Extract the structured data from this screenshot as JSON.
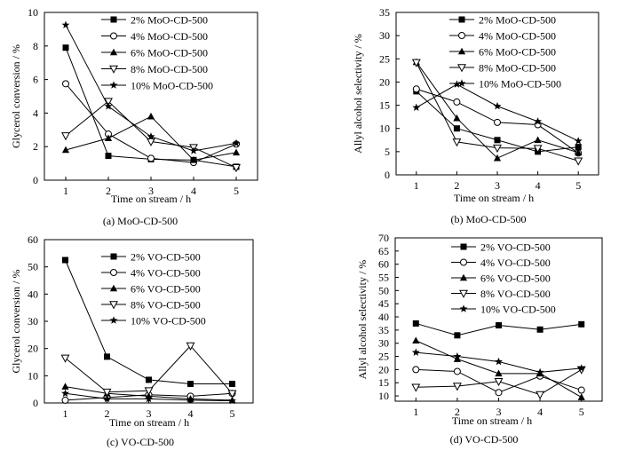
{
  "figure": {
    "panels": [
      {
        "type": "line",
        "caption": "(a) MoO-CD-500",
        "xlabel": "Time on stream / h",
        "ylabel": "Glycerol conversion / %",
        "x": [
          1,
          2,
          3,
          4,
          5
        ],
        "xlim": [
          0.5,
          5.5
        ],
        "ylim": [
          0,
          10
        ],
        "yticks": [
          0,
          2,
          4,
          6,
          8,
          10
        ],
        "xticks": [
          1,
          2,
          3,
          4,
          5
        ],
        "legend_position": "top-right",
        "series": [
          {
            "name": "2% MoO-CD-500",
            "marker": "square",
            "values": [
              7.9,
              1.45,
              1.25,
              1.2,
              0.8
            ]
          },
          {
            "name": "4% MoO-CD-500",
            "marker": "circle-open",
            "values": [
              5.75,
              2.75,
              1.3,
              1.05,
              2.15
            ]
          },
          {
            "name": "6% MoO-CD-500",
            "marker": "triangle-up",
            "values": [
              1.8,
              2.5,
              3.8,
              1.2,
              1.65
            ]
          },
          {
            "name": "8% MoO-CD-500",
            "marker": "triangle-down-open",
            "values": [
              2.65,
              4.7,
              2.3,
              1.95,
              0.75
            ]
          },
          {
            "name": "10% MoO-CD-500",
            "marker": "star",
            "values": [
              9.25,
              4.4,
              2.6,
              1.75,
              2.2
            ]
          }
        ]
      },
      {
        "type": "line",
        "caption": "(b) MoO-CD-500",
        "xlabel": "Time on stream / h",
        "ylabel": "Allyl alcohol selectivity / %",
        "x": [
          1,
          2,
          3,
          4,
          5
        ],
        "xlim": [
          0.5,
          5.5
        ],
        "ylim": [
          0,
          35
        ],
        "yticks": [
          0,
          5,
          10,
          15,
          20,
          25,
          30,
          35
        ],
        "xticks": [
          1,
          2,
          3,
          4,
          5
        ],
        "legend_position": "top-right",
        "series": [
          {
            "name": "2% MoO-CD-500",
            "marker": "square",
            "values": [
              18.0,
              10.0,
              7.5,
              5.0,
              6.0
            ]
          },
          {
            "name": "4% MoO-CD-500",
            "marker": "circle-open",
            "values": [
              18.5,
              15.7,
              11.3,
              10.8,
              4.7
            ]
          },
          {
            "name": "6% MoO-CD-500",
            "marker": "triangle-up",
            "values": [
              24.3,
              12.2,
              3.6,
              7.5,
              4.8
            ]
          },
          {
            "name": "8% MoO-CD-500",
            "marker": "triangle-down-open",
            "values": [
              24.2,
              7.1,
              5.8,
              5.7,
              3.0
            ]
          },
          {
            "name": "10% MoO-CD-500",
            "marker": "star",
            "values": [
              14.5,
              19.5,
              14.8,
              11.5,
              7.3
            ]
          }
        ]
      },
      {
        "type": "line",
        "caption": "(c) VO-CD-500",
        "xlabel": "Time on stream / h",
        "ylabel": "Glycerol conversion / %",
        "x": [
          1,
          2,
          3,
          4,
          5
        ],
        "xlim": [
          0.5,
          5.5
        ],
        "ylim": [
          0,
          60
        ],
        "yticks": [
          0,
          10,
          20,
          30,
          40,
          50,
          60
        ],
        "xticks": [
          1,
          2,
          3,
          4,
          5
        ],
        "legend_position": "top-right",
        "series": [
          {
            "name": "2% VO-CD-500",
            "marker": "square",
            "values": [
              52.5,
              17.0,
              8.5,
              7.0,
              7.0
            ]
          },
          {
            "name": "4% VO-CD-500",
            "marker": "circle-open",
            "values": [
              1.0,
              2.0,
              3.0,
              2.5,
              3.5
            ]
          },
          {
            "name": "6% VO-CD-500",
            "marker": "triangle-up",
            "values": [
              6.0,
              3.5,
              2.5,
              1.5,
              1.0
            ]
          },
          {
            "name": "8% VO-CD-500",
            "marker": "triangle-down-open",
            "values": [
              16.5,
              4.0,
              4.5,
              21.0,
              3.5
            ]
          },
          {
            "name": "10% VO-CD-500",
            "marker": "star",
            "values": [
              3.5,
              1.5,
              1.5,
              1.0,
              0.8
            ]
          }
        ]
      },
      {
        "type": "line",
        "caption": "(d) VO-CD-500",
        "xlabel": "Time on stream / h",
        "ylabel": "Allyl alcohol selectivity / %",
        "x": [
          1,
          2,
          3,
          4,
          5
        ],
        "xlim": [
          0.5,
          5.5
        ],
        "ylim": [
          8,
          70
        ],
        "yticks": [
          10,
          15,
          20,
          25,
          30,
          35,
          40,
          45,
          50,
          55,
          60,
          65,
          70
        ],
        "xticks": [
          1,
          2,
          3,
          4,
          5
        ],
        "legend_position": "top-right",
        "series": [
          {
            "name": "2% VO-CD-500",
            "marker": "square",
            "values": [
              37.5,
              33.0,
              36.8,
              35.2,
              37.2
            ]
          },
          {
            "name": "4% VO-CD-500",
            "marker": "circle-open",
            "values": [
              20.0,
              19.3,
              11.3,
              17.5,
              12.2
            ]
          },
          {
            "name": "6% VO-CD-500",
            "marker": "triangle-up",
            "values": [
              31.0,
              24.0,
              18.5,
              18.5,
              9.5
            ]
          },
          {
            "name": "8% VO-CD-500",
            "marker": "triangle-down-open",
            "values": [
              13.3,
              13.7,
              15.5,
              10.5,
              20.0
            ]
          },
          {
            "name": "10% VO-CD-500",
            "marker": "star",
            "values": [
              26.5,
              25.0,
              23.0,
              19.0,
              20.5
            ]
          }
        ]
      }
    ]
  },
  "chart_data": [
    {
      "type": "line",
      "title": "(a) MoO-CD-500",
      "xlabel": "Time on stream / h",
      "ylabel": "Glycerol conversion / %",
      "x": [
        1,
        2,
        3,
        4,
        5
      ],
      "ylim": [
        0,
        10
      ],
      "series": [
        {
          "name": "2% MoO-CD-500",
          "values": [
            7.9,
            1.45,
            1.25,
            1.2,
            0.8
          ]
        },
        {
          "name": "4% MoO-CD-500",
          "values": [
            5.75,
            2.75,
            1.3,
            1.05,
            2.15
          ]
        },
        {
          "name": "6% MoO-CD-500",
          "values": [
            1.8,
            2.5,
            3.8,
            1.2,
            1.65
          ]
        },
        {
          "name": "8% MoO-CD-500",
          "values": [
            2.65,
            4.7,
            2.3,
            1.95,
            0.75
          ]
        },
        {
          "name": "10% MoO-CD-500",
          "values": [
            9.25,
            4.4,
            2.6,
            1.75,
            2.2
          ]
        }
      ]
    },
    {
      "type": "line",
      "title": "(b) MoO-CD-500",
      "xlabel": "Time on stream / h",
      "ylabel": "Allyl alcohol selectivity / %",
      "x": [
        1,
        2,
        3,
        4,
        5
      ],
      "ylim": [
        0,
        35
      ],
      "series": [
        {
          "name": "2% MoO-CD-500",
          "values": [
            18.0,
            10.0,
            7.5,
            5.0,
            6.0
          ]
        },
        {
          "name": "4% MoO-CD-500",
          "values": [
            18.5,
            15.7,
            11.3,
            10.8,
            4.7
          ]
        },
        {
          "name": "6% MoO-CD-500",
          "values": [
            24.3,
            12.2,
            3.6,
            7.5,
            4.8
          ]
        },
        {
          "name": "8% MoO-CD-500",
          "values": [
            24.2,
            7.1,
            5.8,
            5.7,
            3.0
          ]
        },
        {
          "name": "10% MoO-CD-500",
          "values": [
            14.5,
            19.5,
            14.8,
            11.5,
            7.3
          ]
        }
      ]
    },
    {
      "type": "line",
      "title": "(c) VO-CD-500",
      "xlabel": "Time on stream / h",
      "ylabel": "Glycerol conversion / %",
      "x": [
        1,
        2,
        3,
        4,
        5
      ],
      "ylim": [
        0,
        60
      ],
      "series": [
        {
          "name": "2% VO-CD-500",
          "values": [
            52.5,
            17.0,
            8.5,
            7.0,
            7.0
          ]
        },
        {
          "name": "4% VO-CD-500",
          "values": [
            1.0,
            2.0,
            3.0,
            2.5,
            3.5
          ]
        },
        {
          "name": "6% VO-CD-500",
          "values": [
            6.0,
            3.5,
            2.5,
            1.5,
            1.0
          ]
        },
        {
          "name": "8% VO-CD-500",
          "values": [
            16.5,
            4.0,
            4.5,
            21.0,
            3.5
          ]
        },
        {
          "name": "10% VO-CD-500",
          "values": [
            3.5,
            1.5,
            1.5,
            1.0,
            0.8
          ]
        }
      ]
    },
    {
      "type": "line",
      "title": "(d) VO-CD-500",
      "xlabel": "Time on stream / h",
      "ylabel": "Allyl alcohol selectivity / %",
      "x": [
        1,
        2,
        3,
        4,
        5
      ],
      "ylim": [
        8,
        70
      ],
      "series": [
        {
          "name": "2% VO-CD-500",
          "values": [
            37.5,
            33.0,
            36.8,
            35.2,
            37.2
          ]
        },
        {
          "name": "4% VO-CD-500",
          "values": [
            20.0,
            19.3,
            11.3,
            17.5,
            12.2
          ]
        },
        {
          "name": "6% VO-CD-500",
          "values": [
            31.0,
            24.0,
            18.5,
            18.5,
            9.5
          ]
        },
        {
          "name": "8% VO-CD-500",
          "values": [
            13.3,
            13.7,
            15.5,
            10.5,
            20.0
          ]
        },
        {
          "name": "10% VO-CD-500",
          "values": [
            26.5,
            25.0,
            23.0,
            19.0,
            20.5
          ]
        }
      ]
    }
  ]
}
